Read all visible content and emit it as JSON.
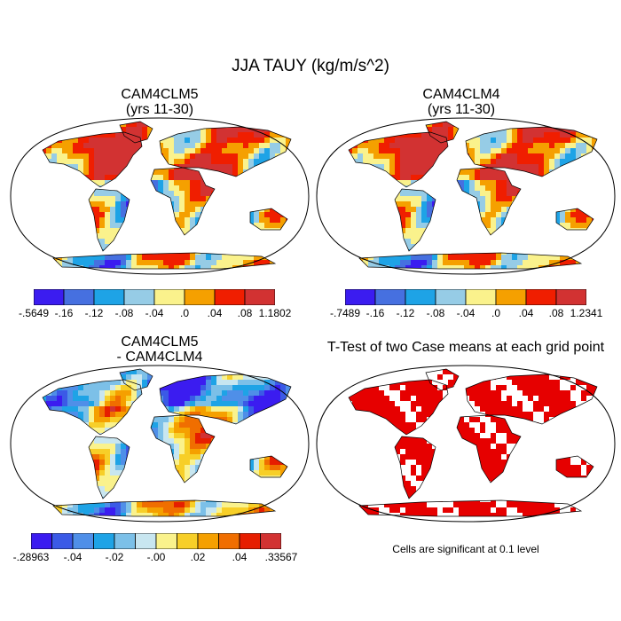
{
  "title": "JJA TAUY (kg/m/s^2)",
  "panels": [
    {
      "id": "cam4clm5",
      "title_line1": "CAM4CLM5",
      "title_line2": "(yrs 11-30)",
      "kind": "field",
      "colorbar": {
        "colors": [
          "#3b1cf0",
          "#4670e0",
          "#1ea3e6",
          "#96cce6",
          "#faf28c",
          "#f5a000",
          "#f01e00",
          "#d23232"
        ],
        "labels": [
          "-.5649",
          "-.16",
          "-.12",
          "-.08",
          "-.04",
          ".0",
          ".04",
          ".08",
          "1.1802"
        ]
      }
    },
    {
      "id": "cam4clm4",
      "title_line1": "CAM4CLM4",
      "title_line2": "(yrs 11-30)",
      "kind": "field",
      "colorbar": {
        "colors": [
          "#3b1cf0",
          "#4670e0",
          "#1ea3e6",
          "#96cce6",
          "#faf28c",
          "#f5a000",
          "#f01e00",
          "#d23232"
        ],
        "labels": [
          "-.7489",
          "-.16",
          "-.12",
          "-.08",
          "-.04",
          ".0",
          ".04",
          ".08",
          "1.2341"
        ]
      }
    },
    {
      "id": "diff",
      "title_line1": "CAM4CLM5",
      "title_line2": "- CAM4CLM4",
      "kind": "diff",
      "colorbar": {
        "colors": [
          "#3b1cf0",
          "#3b5ae6",
          "#4f8fe8",
          "#1ea3e6",
          "#7cc0e8",
          "#c8e6f0",
          "#faf28c",
          "#f7cf28",
          "#f5a000",
          "#f06e00",
          "#e61e00",
          "#d23232"
        ],
        "labels": [
          "-.28963",
          "-.04",
          "-.02",
          "-.00",
          ".02",
          ".04",
          ".33567"
        ]
      }
    },
    {
      "id": "ttest",
      "title_line1": "T-Test of two Case means at each grid point",
      "kind": "ttest",
      "note": "Cells are significant at 0.1 level",
      "significant_color": "#e60000"
    }
  ]
}
